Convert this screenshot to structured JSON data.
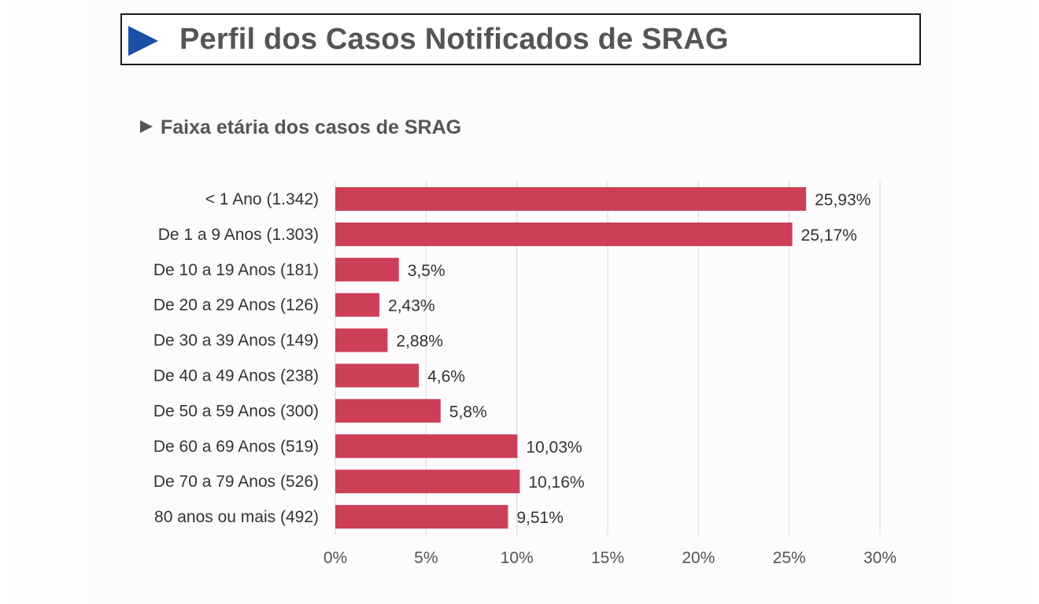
{
  "header": {
    "title": "Perfil dos Casos Notificados de SRAG"
  },
  "subtitle": "Faixa etária dos casos de SRAG",
  "colors": {
    "bar": "#cc3f57",
    "header_arrow": "#1c4fa8",
    "grid": "#d9d9d9"
  },
  "chart_data": {
    "type": "bar",
    "orientation": "horizontal",
    "title": "Faixa etária dos casos de SRAG",
    "categories": [
      "< 1 Ano (1.342)",
      "De 1 a 9 Anos (1.303)",
      "De 10 a 19 Anos (181)",
      "De 20 a 29 Anos (126)",
      "De 30 a 39 Anos (149)",
      "De 40 a 49 Anos (238)",
      "De 50 a 59 Anos (300)",
      "De 60 a 69 Anos (519)",
      "De 70 a 79 Anos (526)",
      "80 anos ou mais (492)"
    ],
    "values": [
      25.93,
      25.17,
      3.5,
      2.43,
      2.88,
      4.6,
      5.8,
      10.03,
      10.16,
      9.51
    ],
    "data_labels": [
      "25,93%",
      "25,17%",
      "3,5%",
      "2,43%",
      "2,88%",
      "4,6%",
      "5,8%",
      "10,03%",
      "10,16%",
      "9,51%"
    ],
    "xlim": [
      0,
      30
    ],
    "x_ticks": [
      0,
      5,
      10,
      15,
      20,
      25,
      30
    ],
    "x_tick_labels": [
      "0%",
      "5%",
      "10%",
      "15%",
      "20%",
      "25%",
      "30%"
    ],
    "grid": "vertical",
    "legend": "none"
  }
}
